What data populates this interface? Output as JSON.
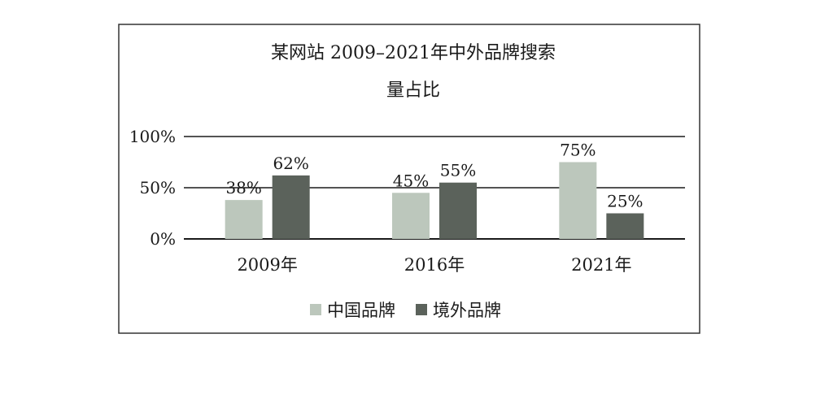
{
  "chart_data": {
    "type": "bar",
    "title": "某网站 2009–2021年中外品牌搜索",
    "subtitle": "量占比",
    "categories": [
      "2009年",
      "2016年",
      "2021年"
    ],
    "series": [
      {
        "name": "中国品牌",
        "values": [
          38,
          45,
          75
        ],
        "labels": [
          "38%",
          "45%",
          "75%"
        ],
        "color": "#bcc7bc"
      },
      {
        "name": "境外品牌",
        "values": [
          62,
          55,
          25
        ],
        "labels": [
          "62%",
          "55%",
          "25%"
        ],
        "color": "#5b625b"
      }
    ],
    "ylim": [
      0,
      100
    ],
    "yticks": [
      0,
      50,
      100
    ],
    "ytick_labels": [
      "0%",
      "50%",
      "100%"
    ],
    "grid": true,
    "legend_position": "bottom"
  }
}
